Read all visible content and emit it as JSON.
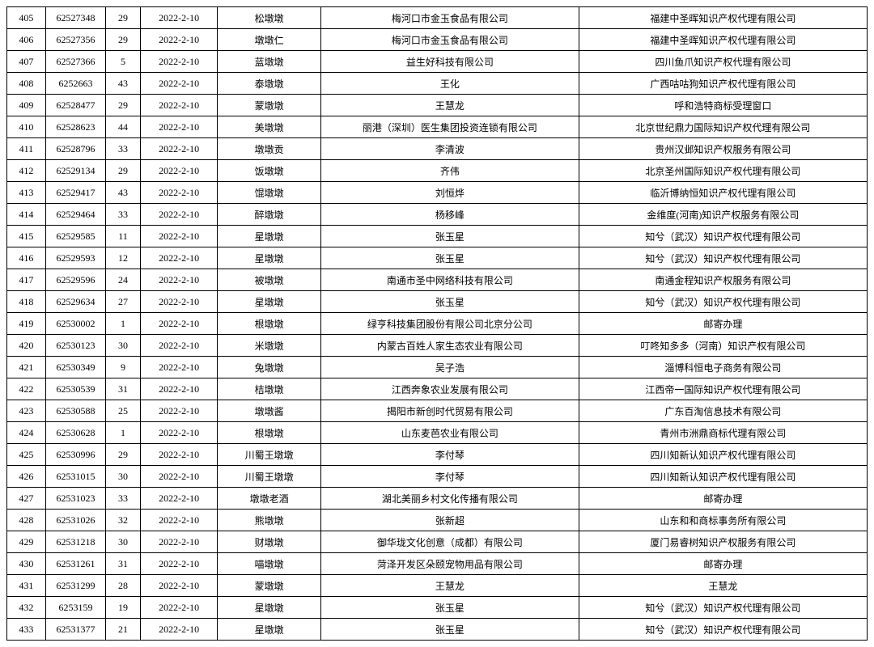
{
  "table": {
    "rows": [
      [
        "405",
        "62527348",
        "29",
        "2022-2-10",
        "松墩墩",
        "梅河口市金玉食品有限公司",
        "福建中圣晖知识产权代理有限公司"
      ],
      [
        "406",
        "62527356",
        "29",
        "2022-2-10",
        "墩墩仁",
        "梅河口市金玉食品有限公司",
        "福建中圣晖知识产权代理有限公司"
      ],
      [
        "407",
        "62527366",
        "5",
        "2022-2-10",
        "蓝墩墩",
        "益生好科技有限公司",
        "四川鱼爪知识产权代理有限公司"
      ],
      [
        "408",
        "6252663",
        "43",
        "2022-2-10",
        "泰墩墩",
        "王化",
        "广西咕咕狗知识产权代理有限公司"
      ],
      [
        "409",
        "62528477",
        "29",
        "2022-2-10",
        "蒙墩墩",
        "王慧龙",
        "呼和浩特商标受理窗口"
      ],
      [
        "410",
        "62528623",
        "44",
        "2022-2-10",
        "美墩墩",
        "丽港（深圳）医生集团投资连锁有限公司",
        "北京世纪鼎力国际知识产权代理有限公司"
      ],
      [
        "411",
        "62528796",
        "33",
        "2022-2-10",
        "墩墩贡",
        "李清波",
        "贵州汉邺知识产权服务有限公司"
      ],
      [
        "412",
        "62529134",
        "29",
        "2022-2-10",
        "饭墩墩",
        "齐伟",
        "北京圣州国际知识产权代理有限公司"
      ],
      [
        "413",
        "62529417",
        "43",
        "2022-2-10",
        "馄墩墩",
        "刘恒烨",
        "临沂博纳恒知识产权代理有限公司"
      ],
      [
        "414",
        "62529464",
        "33",
        "2022-2-10",
        "醉墩墩",
        "杨移峰",
        "金维度(河南)知识产权服务有限公司"
      ],
      [
        "415",
        "62529585",
        "11",
        "2022-2-10",
        "星墩墩",
        "张玉星",
        "知兮（武汉）知识产权代理有限公司"
      ],
      [
        "416",
        "62529593",
        "12",
        "2022-2-10",
        "星墩墩",
        "张玉星",
        "知兮（武汉）知识产权代理有限公司"
      ],
      [
        "417",
        "62529596",
        "24",
        "2022-2-10",
        "被墩墩",
        "南通市圣中网络科技有限公司",
        "南通金程知识产权服务有限公司"
      ],
      [
        "418",
        "62529634",
        "27",
        "2022-2-10",
        "星墩墩",
        "张玉星",
        "知兮（武汉）知识产权代理有限公司"
      ],
      [
        "419",
        "62530002",
        "1",
        "2022-2-10",
        "根墩墩",
        "绿亨科技集团股份有限公司北京分公司",
        "邮寄办理"
      ],
      [
        "420",
        "62530123",
        "30",
        "2022-2-10",
        "米墩墩",
        "内蒙古百姓人家生态农业有限公司",
        "叮咚知多多（河南）知识产权有限公司"
      ],
      [
        "421",
        "62530349",
        "9",
        "2022-2-10",
        "兔墩墩",
        "吴子浩",
        "淄博科恒电子商务有限公司"
      ],
      [
        "422",
        "62530539",
        "31",
        "2022-2-10",
        "桔墩墩",
        "江西奔象农业发展有限公司",
        "江西帝一国际知识产权代理有限公司"
      ],
      [
        "423",
        "62530588",
        "25",
        "2022-2-10",
        "墩墩酱",
        "揭阳市新创时代贸易有限公司",
        "广东百淘信息技术有限公司"
      ],
      [
        "424",
        "62530628",
        "1",
        "2022-2-10",
        "根墩墩",
        "山东麦芭农业有限公司",
        "青州市洲鼎商标代理有限公司"
      ],
      [
        "425",
        "62530996",
        "29",
        "2022-2-10",
        "川蜀王墩墩",
        "李付琴",
        "四川知新认知识产权代理有限公司"
      ],
      [
        "426",
        "62531015",
        "30",
        "2022-2-10",
        "川蜀王墩墩",
        "李付琴",
        "四川知新认知识产权代理有限公司"
      ],
      [
        "427",
        "62531023",
        "33",
        "2022-2-10",
        "墩墩老酒",
        "湖北美丽乡村文化传播有限公司",
        "邮寄办理"
      ],
      [
        "428",
        "62531026",
        "32",
        "2022-2-10",
        "熊墩墩",
        "张新超",
        "山东和和商标事务所有限公司"
      ],
      [
        "429",
        "62531218",
        "30",
        "2022-2-10",
        "财墩墩",
        "御华珑文化创意（成都）有限公司",
        "厦门易睿树知识产权服务有限公司"
      ],
      [
        "430",
        "62531261",
        "31",
        "2022-2-10",
        "喵墩墩",
        "菏泽开发区朵颐宠物用品有限公司",
        "邮寄办理"
      ],
      [
        "431",
        "62531299",
        "28",
        "2022-2-10",
        "蒙墩墩",
        "王慧龙",
        "王慧龙"
      ],
      [
        "432",
        "6253159",
        "19",
        "2022-2-10",
        "星墩墩",
        "张玉星",
        "知兮（武汉）知识产权代理有限公司"
      ],
      [
        "433",
        "62531377",
        "21",
        "2022-2-10",
        "星墩墩",
        "张玉星",
        "知兮（武汉）知识产权代理有限公司"
      ]
    ]
  }
}
